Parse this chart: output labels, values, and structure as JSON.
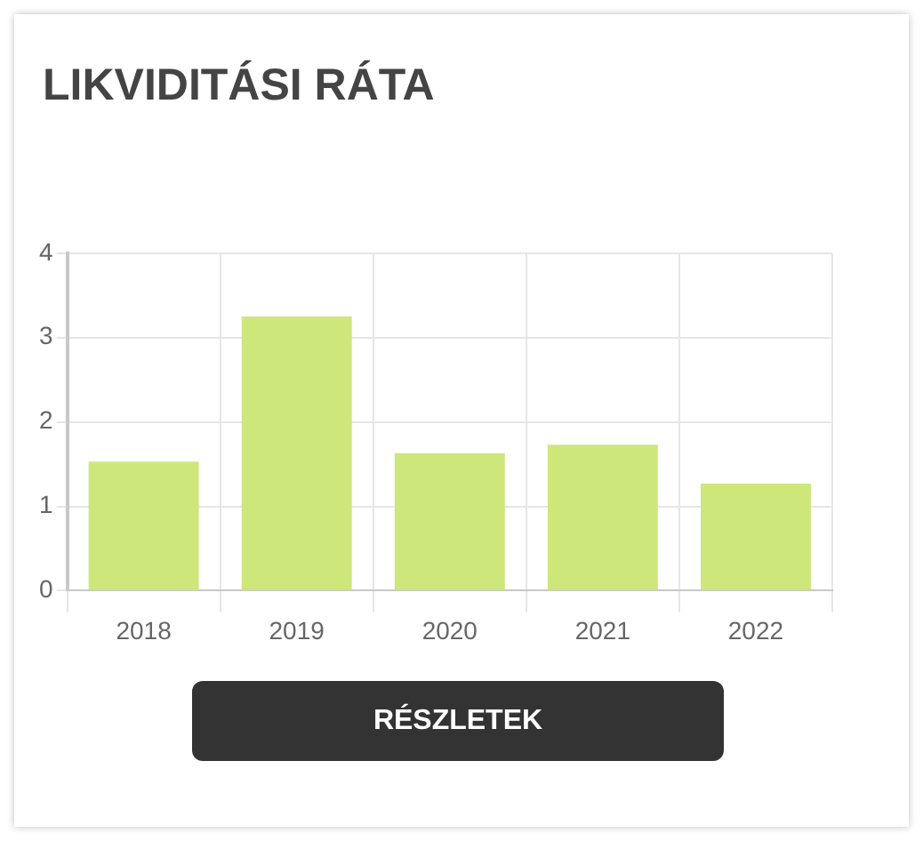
{
  "chart_data": {
    "type": "bar",
    "title": "LIKVIDITÁSI RÁTA",
    "categories": [
      "2018",
      "2019",
      "2020",
      "2021",
      "2022"
    ],
    "values": [
      1.53,
      3.25,
      1.63,
      1.73,
      1.27
    ],
    "color": "#cde77a",
    "ylim": [
      0,
      4
    ],
    "yticks": [
      0,
      1,
      2,
      3,
      4
    ],
    "grid": true,
    "legend": false,
    "annotations": [
      "RÉSZLETEK"
    ]
  }
}
